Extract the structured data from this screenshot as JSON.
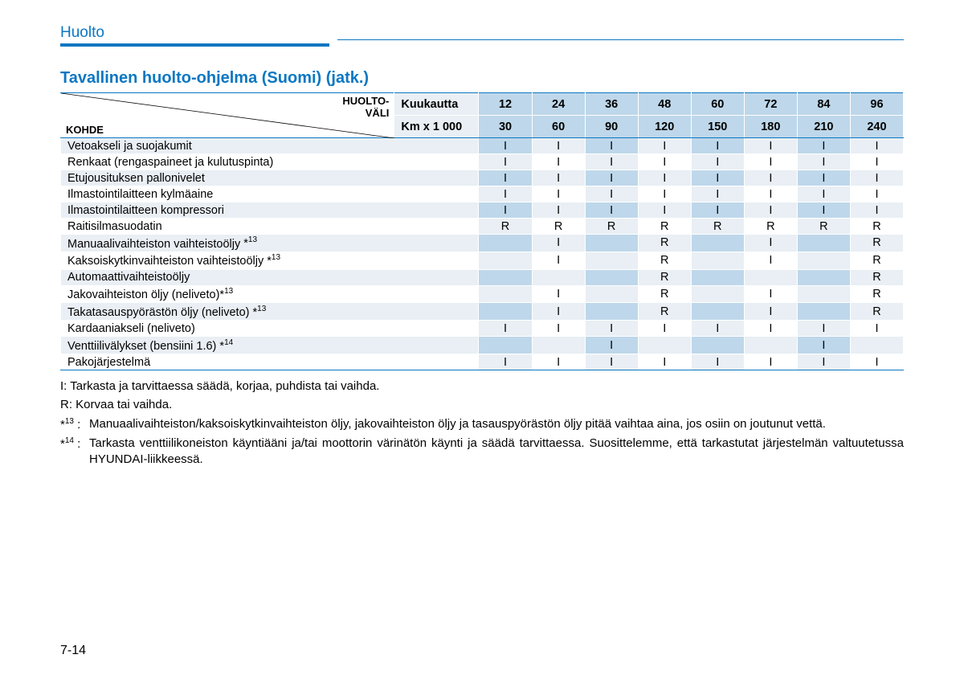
{
  "colors": {
    "accent": "#0b77c2",
    "header_light": "#e9eff4",
    "header_dark": "#bed7ea",
    "white": "#ffffff"
  },
  "section_title": "Huolto",
  "subtitle": "Tavallinen huolto-ohjelma (Suomi) (jatk.)",
  "table": {
    "diag_top": "HUOLTO-\nVÄLI",
    "diag_bottom": "KOHDE",
    "header_rows": [
      {
        "label": "Kuukautta",
        "values": [
          "12",
          "24",
          "36",
          "48",
          "60",
          "72",
          "84",
          "96"
        ]
      },
      {
        "label": "Km x 1 000",
        "values": [
          "30",
          "60",
          "90",
          "120",
          "150",
          "180",
          "210",
          "240"
        ]
      }
    ],
    "rows": [
      {
        "item": "Vetoakseli ja suojakumit",
        "sup": "",
        "vals": [
          "I",
          "I",
          "I",
          "I",
          "I",
          "I",
          "I",
          "I"
        ]
      },
      {
        "item": "Renkaat (rengaspaineet ja kulutuspinta)",
        "sup": "",
        "vals": [
          "I",
          "I",
          "I",
          "I",
          "I",
          "I",
          "I",
          "I"
        ]
      },
      {
        "item": "Etujousituksen pallonivelet",
        "sup": "",
        "vals": [
          "I",
          "I",
          "I",
          "I",
          "I",
          "I",
          "I",
          "I"
        ]
      },
      {
        "item": "Ilmastointilaitteen kylmäaine",
        "sup": "",
        "vals": [
          "I",
          "I",
          "I",
          "I",
          "I",
          "I",
          "I",
          "I"
        ]
      },
      {
        "item": "Ilmastointilaitteen kompressori",
        "sup": "",
        "vals": [
          "I",
          "I",
          "I",
          "I",
          "I",
          "I",
          "I",
          "I"
        ]
      },
      {
        "item": "Raitisilmasuodatin",
        "sup": "",
        "vals": [
          "R",
          "R",
          "R",
          "R",
          "R",
          "R",
          "R",
          "R"
        ]
      },
      {
        "item": "Manuaalivaihteiston vaihteistoöljy ",
        "sup": "*13",
        "vals": [
          "",
          "I",
          "",
          "R",
          "",
          "I",
          "",
          "R"
        ]
      },
      {
        "item": "Kaksoiskytkinvaihteiston vaihteistoöljy ",
        "sup": "*13",
        "vals": [
          "",
          "I",
          "",
          "R",
          "",
          "I",
          "",
          "R"
        ]
      },
      {
        "item": "Automaattivaihteistoöljy",
        "sup": "",
        "vals": [
          "",
          "",
          "",
          "R",
          "",
          "",
          "",
          "R"
        ]
      },
      {
        "item": "Jakovaihteiston öljy (neliveto)",
        "sup": "*13",
        "vals": [
          "",
          "I",
          "",
          "R",
          "",
          "I",
          "",
          "R"
        ]
      },
      {
        "item": "Takatasauspyörästön öljy (neliveto) ",
        "sup": "*13",
        "vals": [
          "",
          "I",
          "",
          "R",
          "",
          "I",
          "",
          "R"
        ]
      },
      {
        "item": "Kardaaniakseli (neliveto)",
        "sup": "",
        "vals": [
          "I",
          "I",
          "I",
          "I",
          "I",
          "I",
          "I",
          "I"
        ]
      },
      {
        "item": "Venttiilivälykset (bensiini 1.6) ",
        "sup": "*14",
        "vals": [
          "",
          "",
          "I",
          "",
          "",
          "",
          "I",
          ""
        ]
      },
      {
        "item": "Pakojärjestelmä",
        "sup": "",
        "vals": [
          "I",
          "I",
          "I",
          "I",
          "I",
          "I",
          "I",
          "I"
        ]
      }
    ]
  },
  "legend": {
    "I": "I: Tarkasta ja tarvittaessa säädä, korjaa, puhdista tai vaihda.",
    "R": "R: Korvaa tai vaihda."
  },
  "footnotes": [
    {
      "label": "*13 :",
      "text": "Manuaalivaihteiston/kaksoiskytkinvaihteiston öljy, jakovaihteiston öljy ja tasauspyörästön öljy pitää vaihtaa aina, jos osiin on joutunut vettä."
    },
    {
      "label": "*14 :",
      "text": "Tarkasta venttiilikoneiston käyntiääni ja/tai moottorin värinätön käynti ja säädä tarvittaessa. Suosittelemme, että tarkastutat järjestelmän valtuutetussa HYUNDAI-liikkeessä."
    }
  ],
  "page_number": "7-14"
}
